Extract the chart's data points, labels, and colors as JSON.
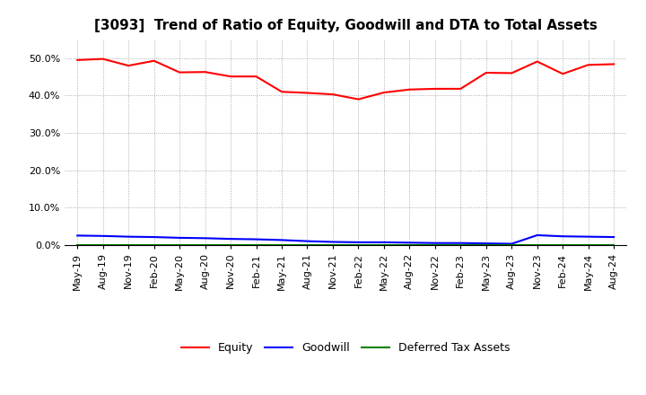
{
  "title": "[3093]  Trend of Ratio of Equity, Goodwill and DTA to Total Assets",
  "x_labels": [
    "May-19",
    "Aug-19",
    "Nov-19",
    "Feb-20",
    "May-20",
    "Aug-20",
    "Nov-20",
    "Feb-21",
    "May-21",
    "Aug-21",
    "Nov-21",
    "Feb-22",
    "May-22",
    "Aug-22",
    "Nov-22",
    "Feb-23",
    "May-23",
    "Aug-23",
    "Nov-23",
    "Feb-24",
    "May-24",
    "Aug-24"
  ],
  "equity": [
    49.5,
    49.8,
    48.0,
    49.3,
    46.2,
    46.3,
    45.1,
    45.1,
    41.0,
    40.7,
    40.3,
    39.0,
    40.8,
    41.6,
    41.8,
    41.8,
    46.1,
    46.0,
    49.1,
    45.8,
    48.2,
    48.4
  ],
  "goodwill": [
    2.5,
    2.4,
    2.2,
    2.1,
    1.9,
    1.8,
    1.6,
    1.5,
    1.3,
    1.0,
    0.8,
    0.7,
    0.7,
    0.6,
    0.5,
    0.5,
    0.4,
    0.3,
    2.6,
    2.3,
    2.2,
    2.1
  ],
  "dta": [
    0.05,
    0.05,
    0.05,
    0.05,
    0.05,
    0.05,
    0.05,
    0.05,
    0.05,
    0.05,
    0.05,
    0.05,
    0.05,
    0.05,
    0.05,
    0.05,
    0.05,
    0.05,
    0.05,
    0.05,
    0.05,
    0.05
  ],
  "equity_color": "#FF0000",
  "goodwill_color": "#0000FF",
  "dta_color": "#008000",
  "ylim_min": 0,
  "ylim_max": 55,
  "yticks": [
    0,
    10,
    20,
    30,
    40,
    50
  ],
  "ytick_labels": [
    "0.0%",
    "10.0%",
    "20.0%",
    "30.0%",
    "40.0%",
    "50.0%"
  ],
  "background_color": "#FFFFFF",
  "grid_color": "#999999",
  "title_fontsize": 11,
  "tick_fontsize": 8,
  "legend_fontsize": 9
}
